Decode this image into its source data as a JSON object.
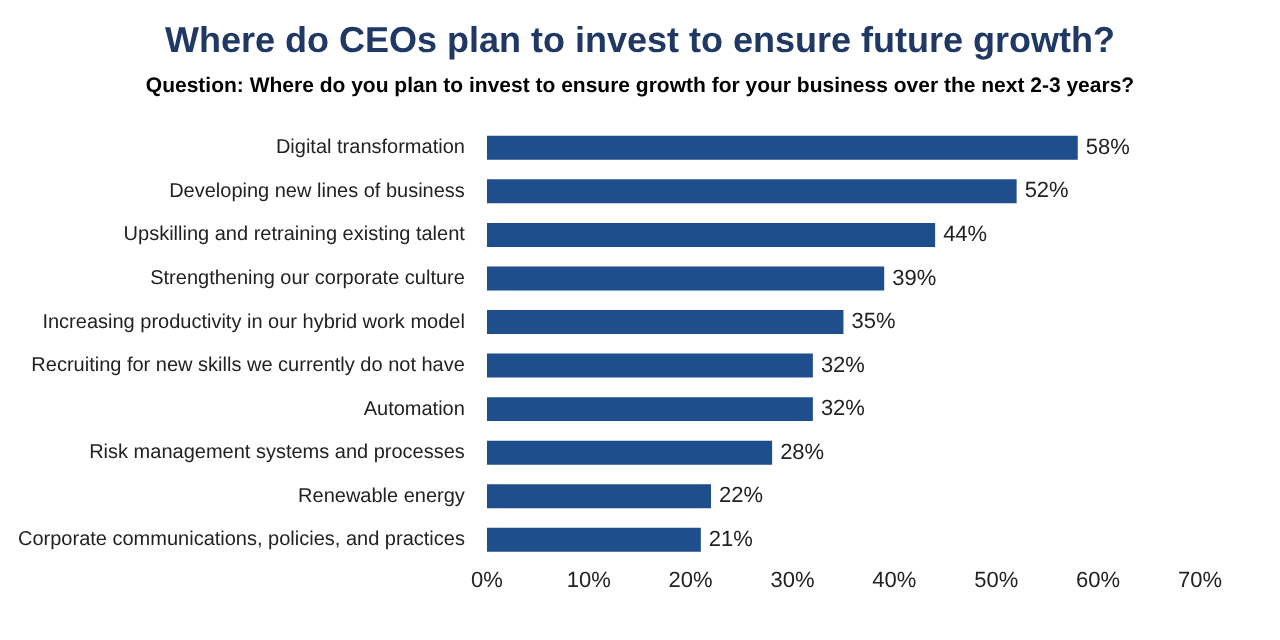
{
  "chart_data": {
    "type": "bar",
    "orientation": "horizontal",
    "title": "Where do CEOs plan to invest to ensure future growth?",
    "subtitle": "Question: Where do you plan to invest to ensure growth for your business over the next 2-3 years?",
    "categories": [
      "Digital transformation",
      "Developing new lines of business",
      "Upskilling and retraining existing talent",
      "Strengthening our corporate culture",
      "Increasing productivity in our hybrid work model",
      "Recruiting for new skills we currently do not have",
      "Automation",
      "Risk management systems and processes",
      "Renewable energy",
      "Corporate communications, policies, and practices"
    ],
    "values": [
      58,
      52,
      44,
      39,
      35,
      32,
      32,
      28,
      22,
      21
    ],
    "value_labels": [
      "58%",
      "52%",
      "44%",
      "39%",
      "35%",
      "32%",
      "32%",
      "28%",
      "22%",
      "21%"
    ],
    "color": "#1f4e8c",
    "xlim": [
      0,
      70
    ],
    "xticks": [
      {
        "value": 0,
        "label": "0%"
      },
      {
        "value": 10,
        "label": "10%"
      },
      {
        "value": 20,
        "label": "20%"
      },
      {
        "value": 30,
        "label": "30%"
      },
      {
        "value": 40,
        "label": "40%"
      },
      {
        "value": 50,
        "label": "50%"
      },
      {
        "value": 60,
        "label": "60%"
      },
      {
        "value": 70,
        "label": "70%"
      }
    ],
    "legend": false
  }
}
